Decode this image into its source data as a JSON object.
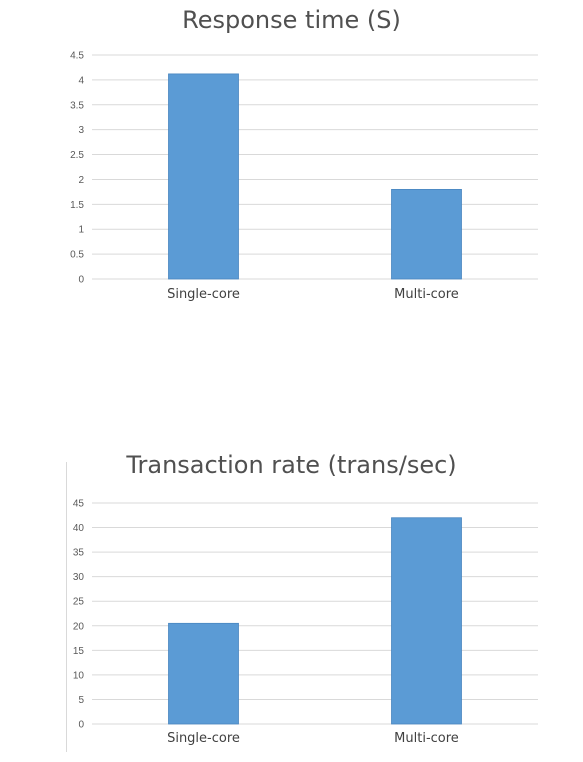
{
  "chart_data": [
    {
      "type": "bar",
      "title": "Response time (S)",
      "categories": [
        "Single-core",
        "Multi-core"
      ],
      "values": [
        4.12,
        1.8
      ],
      "ylim": [
        0,
        4.5
      ],
      "yticks": [
        "0",
        "0.5",
        "1",
        "1.5",
        "2",
        "2.5",
        "3",
        "3.5",
        "4",
        "4.5"
      ],
      "grid": true,
      "color": "#5b9bd5"
    },
    {
      "type": "bar",
      "title": "Transaction rate (trans/sec)",
      "categories": [
        "Single-core",
        "Multi-core"
      ],
      "values": [
        20.5,
        42
      ],
      "ylim": [
        0,
        45
      ],
      "yticks": [
        "0",
        "5",
        "10",
        "15",
        "20",
        "25",
        "30",
        "35",
        "40",
        "45"
      ],
      "grid": true,
      "color": "#5b9bd5"
    }
  ]
}
